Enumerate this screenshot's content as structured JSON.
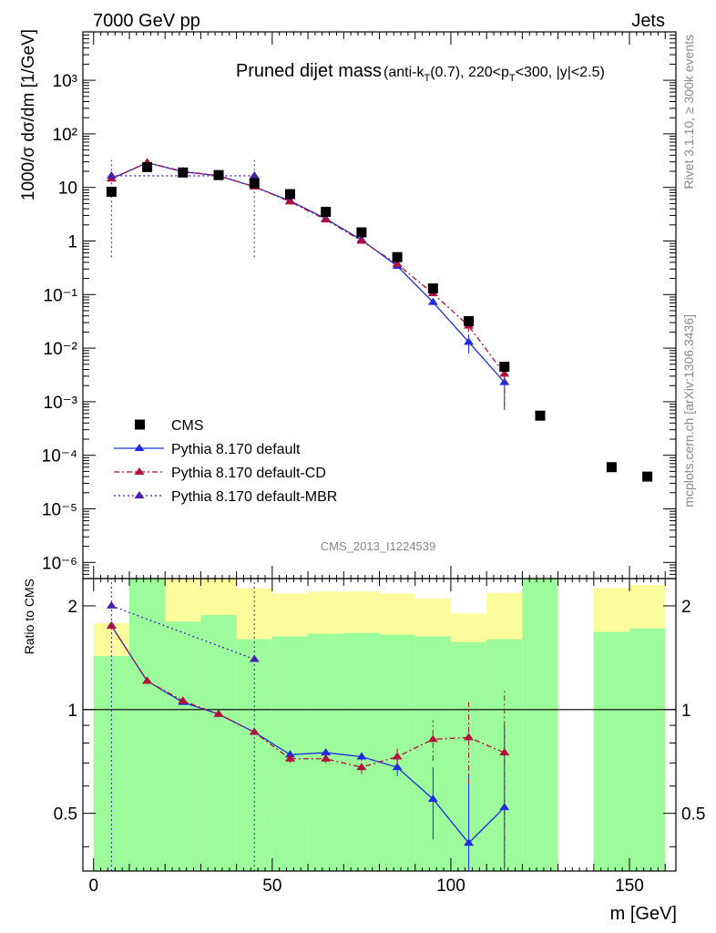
{
  "header": {
    "left": "7000 GeV pp",
    "right": "Jets"
  },
  "side": {
    "rivet": "Rivet 3.1.10, ≥ 300k events",
    "mcplots": "mcplots.cern.ch [arXiv:1306.3436]"
  },
  "chart_data": [
    {
      "type": "scatter",
      "title_main": "Pruned dijet mass",
      "title_sub": "(anti-k_T(0.7), 220<p_T<300, |y|<2.5)",
      "watermark": "CMS_2013_I1224539",
      "ylabel": "1000/σ dσ/dm [1/GeV]",
      "yscale": "log",
      "ylim": [
        5e-07,
        8000
      ],
      "xlim": [
        -3,
        163
      ],
      "ytick_labels": [
        "10⁻⁶",
        "10⁻⁵",
        "10⁻⁴",
        "10⁻³",
        "10⁻²",
        "10⁻¹",
        "1",
        "10",
        "10²",
        "10³"
      ],
      "legend_position": "bottom-left",
      "series": [
        {
          "name": "CMS",
          "style": "black squares",
          "color": "#000000",
          "x": [
            5,
            15,
            25,
            35,
            45,
            55,
            65,
            75,
            85,
            95,
            105,
            115,
            125,
            145,
            155
          ],
          "y": [
            8.3,
            24,
            19,
            17,
            12,
            7.5,
            3.5,
            1.45,
            0.5,
            0.13,
            0.032,
            0.0045,
            0.00055,
            6e-05,
            4e-05
          ]
        },
        {
          "name": "Pythia 8.170 default",
          "style": "solid line, triangles",
          "color": "#1f2de0",
          "x": [
            5,
            15,
            25,
            35,
            45,
            55,
            65,
            75,
            85,
            95,
            105,
            115
          ],
          "y": [
            14.5,
            29,
            19.5,
            16.5,
            10.3,
            5.6,
            2.6,
            1.05,
            0.34,
            0.072,
            0.013,
            0.0023
          ],
          "yerr": [
            0.4,
            0.4,
            0.3,
            0.3,
            0.2,
            0.15,
            0.08,
            0.04,
            0.02,
            0.008,
            0.005,
            0.0016
          ]
        },
        {
          "name": "Pythia 8.170 default-CD",
          "style": "dash-dot line, triangles",
          "color": "#b0103a",
          "x": [
            5,
            15,
            25,
            35,
            45,
            55,
            65,
            75,
            85,
            95,
            105,
            115
          ],
          "y": [
            14.5,
            29,
            20,
            16.5,
            10.3,
            5.4,
            2.5,
            1.0,
            0.37,
            0.105,
            0.026,
            0.0033
          ],
          "yerr": [
            0.4,
            0.4,
            0.3,
            0.3,
            0.2,
            0.15,
            0.08,
            0.04,
            0.02,
            0.01,
            0.006,
            0.0025
          ]
        },
        {
          "name": "Pythia 8.170 default-MBR",
          "style": "dotted line, triangles",
          "color": "#4c1eb0",
          "x": [
            5,
            45
          ],
          "y": [
            16.5,
            16.5
          ],
          "yerr": [
            16,
            16
          ]
        }
      ]
    },
    {
      "type": "scatter",
      "ylabel": "Ratio to CMS",
      "xlabel": "m [GeV]",
      "yscale": "log",
      "ylim": [
        0.34,
        2.4
      ],
      "xlim": [
        -3,
        163
      ],
      "xtick_labels": [
        "0",
        "50",
        "100",
        "150"
      ],
      "ytick_labels": [
        "0.5",
        "1",
        "2"
      ],
      "reference_line": 1,
      "bands": {
        "bins": [
          [
            0,
            10
          ],
          [
            10,
            20
          ],
          [
            20,
            30
          ],
          [
            30,
            40
          ],
          [
            40,
            50
          ],
          [
            50,
            60
          ],
          [
            60,
            70
          ],
          [
            70,
            80
          ],
          [
            80,
            90
          ],
          [
            90,
            100
          ],
          [
            100,
            110
          ],
          [
            110,
            120
          ],
          [
            120,
            130
          ],
          [
            140,
            150
          ],
          [
            150,
            160
          ]
        ],
        "inner_color": "#9cfc9c",
        "outer_color": "#fcfc9c",
        "inner_low": [
          0.34,
          0.34,
          0.34,
          0.34,
          0.34,
          0.34,
          0.34,
          0.34,
          0.34,
          0.34,
          0.34,
          0.34,
          0.34,
          0.34,
          0.34
        ],
        "inner_high": [
          1.43,
          2.4,
          1.8,
          1.88,
          1.6,
          1.63,
          1.66,
          1.67,
          1.65,
          1.63,
          1.57,
          1.6,
          2.4,
          1.68,
          1.72
        ],
        "outer_low": [
          0.34,
          0.34,
          0.34,
          0.34,
          0.57,
          0.47,
          0.47,
          0.53,
          0.63,
          0.66,
          0.64,
          0.71,
          0.34,
          0.34,
          0.34
        ],
        "outer_high": [
          1.78,
          2.4,
          2.4,
          2.4,
          2.25,
          2.17,
          2.2,
          2.2,
          2.17,
          2.1,
          1.9,
          2.18,
          2.4,
          2.25,
          2.3
        ]
      },
      "series": [
        {
          "name": "Pythia 8.170 default",
          "color": "#1f2de0",
          "x": [
            5,
            15,
            25,
            35,
            45,
            55,
            65,
            75,
            85,
            95,
            105,
            115
          ],
          "y": [
            1.75,
            1.21,
            1.05,
            0.97,
            0.86,
            0.74,
            0.75,
            0.73,
            0.68,
            0.55,
            0.41,
            0.52
          ],
          "yerr": [
            0.02,
            0.02,
            0.01,
            0.01,
            0.01,
            0.02,
            0.02,
            0.02,
            0.04,
            0.13,
            0.24,
            0.38
          ]
        },
        {
          "name": "Pythia 8.170 default-CD",
          "color": "#b0103a",
          "x": [
            5,
            15,
            25,
            35,
            45,
            55,
            65,
            75,
            85,
            95,
            105,
            115
          ],
          "y": [
            1.75,
            1.21,
            1.06,
            0.97,
            0.86,
            0.72,
            0.72,
            0.68,
            0.73,
            0.82,
            0.83,
            0.75
          ],
          "yerr": [
            0.02,
            0.02,
            0.01,
            0.01,
            0.01,
            0.02,
            0.02,
            0.03,
            0.04,
            0.11,
            0.22,
            0.4
          ]
        },
        {
          "name": "Pythia 8.170 default-MBR",
          "color": "#4c1eb0",
          "x": [
            5,
            45
          ],
          "y": [
            2.0,
            1.4
          ],
          "yerr": [
            1.8,
            1.2
          ]
        }
      ]
    }
  ]
}
